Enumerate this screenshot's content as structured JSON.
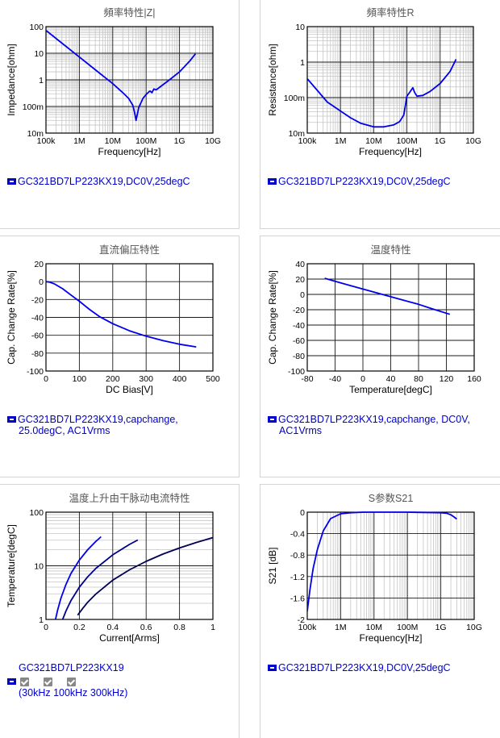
{
  "charts": [
    {
      "key": "impedance",
      "type": "line",
      "title": "頻率特性|Z|",
      "xlabel": "Frequency[Hz]",
      "ylabel": "Impedance[ohm]",
      "xscale": "log",
      "yscale": "log",
      "xlim": [
        100000,
        10000000000
      ],
      "ylim": [
        0.01,
        100
      ],
      "xticks": [
        100000,
        1000000,
        10000000,
        100000000,
        1000000000,
        10000000000
      ],
      "xtick_labels": [
        "100k",
        "1M",
        "10M",
        "100M",
        "1G",
        "10G"
      ],
      "yticks": [
        0.01,
        0.1,
        1,
        10,
        100
      ],
      "ytick_labels": [
        "10m",
        "100m",
        "1",
        "10",
        "100"
      ],
      "series": [
        {
          "name": "GC321BD7LP223KX19,DC0V,25degC",
          "color": "#0000ee",
          "x": [
            100000,
            300000,
            1000000,
            3000000,
            10000000,
            20000000,
            30000000,
            40000000,
            45000000,
            50000000,
            60000000,
            80000000,
            100000000,
            120000000,
            130000000,
            150000000,
            170000000,
            200000000,
            300000000,
            500000000,
            1000000000,
            2000000000,
            3000000000
          ],
          "y": [
            72,
            24,
            7.2,
            2.4,
            0.72,
            0.33,
            0.2,
            0.11,
            0.06,
            0.03,
            0.09,
            0.2,
            0.28,
            0.35,
            0.38,
            0.33,
            0.45,
            0.42,
            0.62,
            1.0,
            2.0,
            5.0,
            9.5
          ]
        }
      ]
    },
    {
      "key": "resistance",
      "type": "line",
      "title": "頻率特性R",
      "xlabel": "Frequency[Hz]",
      "ylabel": "Resistance[ohm]",
      "xscale": "log",
      "yscale": "log",
      "xlim": [
        100000,
        10000000000
      ],
      "ylim": [
        0.01,
        10
      ],
      "xticks": [
        100000,
        1000000,
        10000000,
        100000000,
        1000000000,
        10000000000
      ],
      "xtick_labels": [
        "100k",
        "1M",
        "10M",
        "100M",
        "1G",
        "10G"
      ],
      "yticks": [
        0.01,
        0.1,
        1,
        10
      ],
      "ytick_labels": [
        "10m",
        "100m",
        "1",
        "10"
      ],
      "series": [
        {
          "name": "GC321BD7LP223KX19,DC0V,25degC",
          "color": "#0000ee",
          "x": [
            100000,
            200000,
            400000,
            1000000,
            2000000,
            4000000,
            10000000,
            20000000,
            40000000,
            60000000,
            80000000,
            90000000,
            100000000,
            120000000,
            150000000,
            170000000,
            200000000,
            300000000,
            500000000,
            1000000000,
            2000000000,
            3000000000
          ],
          "y": [
            0.34,
            0.16,
            0.075,
            0.042,
            0.027,
            0.019,
            0.015,
            0.015,
            0.017,
            0.021,
            0.032,
            0.06,
            0.11,
            0.14,
            0.19,
            0.14,
            0.11,
            0.115,
            0.15,
            0.25,
            0.55,
            1.2
          ]
        }
      ]
    },
    {
      "key": "dcbias",
      "type": "line",
      "title": "直流偏压特性",
      "xlabel": "DC Bias[V]",
      "ylabel": "Cap. Change Rate[%]",
      "xscale": "linear",
      "yscale": "linear",
      "xlim": [
        0,
        500
      ],
      "ylim": [
        -100,
        20
      ],
      "xticks": [
        0,
        100,
        200,
        300,
        400,
        500
      ],
      "xtick_labels": [
        "0",
        "100",
        "200",
        "300",
        "400",
        "500"
      ],
      "yticks": [
        20,
        0,
        -20,
        -40,
        -60,
        -80,
        -100
      ],
      "ytick_labels": [
        "20",
        "0",
        "-20",
        "-40",
        "-60",
        "-80",
        "-100"
      ],
      "series": [
        {
          "name": "GC321BD7LP223KX19,capchange,25.0degC, AC1Vrms",
          "color": "#0000ee",
          "x": [
            0,
            10,
            25,
            50,
            75,
            100,
            130,
            160,
            200,
            250,
            300,
            350,
            400,
            450
          ],
          "y": [
            0,
            -0.5,
            -2.5,
            -8,
            -15,
            -22,
            -31,
            -39,
            -47,
            -55,
            -61,
            -66,
            -70,
            -73
          ]
        }
      ]
    },
    {
      "key": "temperature",
      "type": "line",
      "title": "温度特性",
      "xlabel": "Temperature[degC]",
      "ylabel": "Cap. Change Rate[%]",
      "xscale": "linear",
      "yscale": "linear",
      "xlim": [
        -80,
        160
      ],
      "ylim": [
        -100,
        40
      ],
      "xticks": [
        -80,
        -40,
        0,
        40,
        80,
        120,
        160
      ],
      "xtick_labels": [
        "-80",
        "-40",
        "0",
        "40",
        "80",
        "120",
        "160"
      ],
      "yticks": [
        40,
        20,
        0,
        -20,
        -40,
        -60,
        -80,
        -100
      ],
      "ytick_labels": [
        "40",
        "20",
        "0",
        "-20",
        "-40",
        "-60",
        "-80",
        "-100"
      ],
      "series": [
        {
          "name": "GC321BD7LP223KX19,capchange, DC0V, AC1Vrms",
          "color": "#0000ee",
          "x": [
            -55,
            -40,
            -20,
            0,
            20,
            40,
            60,
            80,
            100,
            125
          ],
          "y": [
            21,
            17,
            12,
            7,
            2,
            -3,
            -8,
            -13,
            -19,
            -26
          ]
        }
      ]
    },
    {
      "key": "heating",
      "type": "line",
      "title": "温度上升由干脉动电流特性",
      "xlabel": "Current[Arms]",
      "ylabel": "Temperature[degC]",
      "xscale": "linear",
      "yscale": "log",
      "xlim": [
        0,
        1
      ],
      "ylim": [
        1,
        100
      ],
      "xticks": [
        0,
        0.2,
        0.4,
        0.6,
        0.8,
        1
      ],
      "xtick_labels": [
        "0",
        "0.2",
        "0.4",
        "0.6",
        "0.8",
        "1"
      ],
      "yticks": [
        1,
        10,
        100
      ],
      "ytick_labels": [
        "1",
        "10",
        "100"
      ],
      "series": [
        {
          "name": "30kHz",
          "color": "#0000ee",
          "x": [
            0.057,
            0.07,
            0.09,
            0.12,
            0.15,
            0.2,
            0.25,
            0.3,
            0.33
          ],
          "y": [
            1,
            1.5,
            2.5,
            4.5,
            7.2,
            12.8,
            20,
            28.8,
            34.8
          ]
        },
        {
          "name": "100kHz",
          "color": "#00008b",
          "x": [
            0.1,
            0.12,
            0.15,
            0.2,
            0.25,
            0.3,
            0.4,
            0.5,
            0.55
          ],
          "y": [
            1,
            1.44,
            2.25,
            4,
            6.25,
            9,
            16,
            25,
            30.3
          ]
        },
        {
          "name": "300kHz",
          "color": "#000055",
          "x": [
            0.19,
            0.22,
            0.25,
            0.3,
            0.4,
            0.5,
            0.6,
            0.7,
            0.8,
            0.9,
            1.0
          ],
          "y": [
            1.2,
            1.6,
            2.1,
            3.0,
            5.4,
            8.4,
            12.1,
            16.5,
            21.5,
            27.2,
            33.6
          ]
        }
      ]
    },
    {
      "key": "s21",
      "type": "line",
      "title": "S参数S21",
      "xlabel": "Frequency[Hz]",
      "ylabel": "S21 [dB]",
      "xscale": "log",
      "yscale": "linear",
      "xlim": [
        100000,
        10000000000
      ],
      "ylim": [
        -2,
        0
      ],
      "xticks": [
        100000,
        1000000,
        10000000,
        100000000,
        1000000000,
        10000000000
      ],
      "xtick_labels": [
        "100k",
        "1M",
        "10M",
        "100M",
        "1G",
        "10G"
      ],
      "yticks": [
        0,
        -0.4,
        -0.8,
        -1.2,
        -1.6,
        -2
      ],
      "ytick_labels": [
        "0",
        "-0.4",
        "-0.8",
        "-1.2",
        "-1.6",
        "-2"
      ],
      "series": [
        {
          "name": "GC321BD7LP223KX19,DC0V,25degC",
          "color": "#0000ee",
          "x": [
            100000,
            120000,
            150000,
            200000,
            300000,
            500000,
            1000000,
            2000000,
            5000000,
            10000000,
            100000000,
            1000000000,
            1500000000,
            2000000000,
            2500000000,
            3000000000
          ],
          "y": [
            -1.85,
            -1.45,
            -1.05,
            -0.7,
            -0.35,
            -0.12,
            -0.03,
            -0.01,
            0,
            0,
            0,
            -0.01,
            -0.02,
            -0.05,
            -0.09,
            -0.13
          ]
        }
      ]
    }
  ],
  "legends": {
    "impedance": "GC321BD7LP223KX19,DC0V,25degC",
    "resistance": "GC321BD7LP223KX19,DC0V,25degC",
    "dcbias_line1": "GC321BD7LP223KX19,capchange,",
    "dcbias_line2": "25.0degC, AC1Vrms",
    "temperature_line1": "GC321BD7LP223KX19,capchange, DC0V,",
    "temperature_line2": "AC1Vrms",
    "heating_part": "GC321BD7LP223KX19",
    "heating_sub": "(30kHz  100kHz  300kHz)",
    "s21": "GC321BD7LP223KX19,DC0V,25degC"
  }
}
